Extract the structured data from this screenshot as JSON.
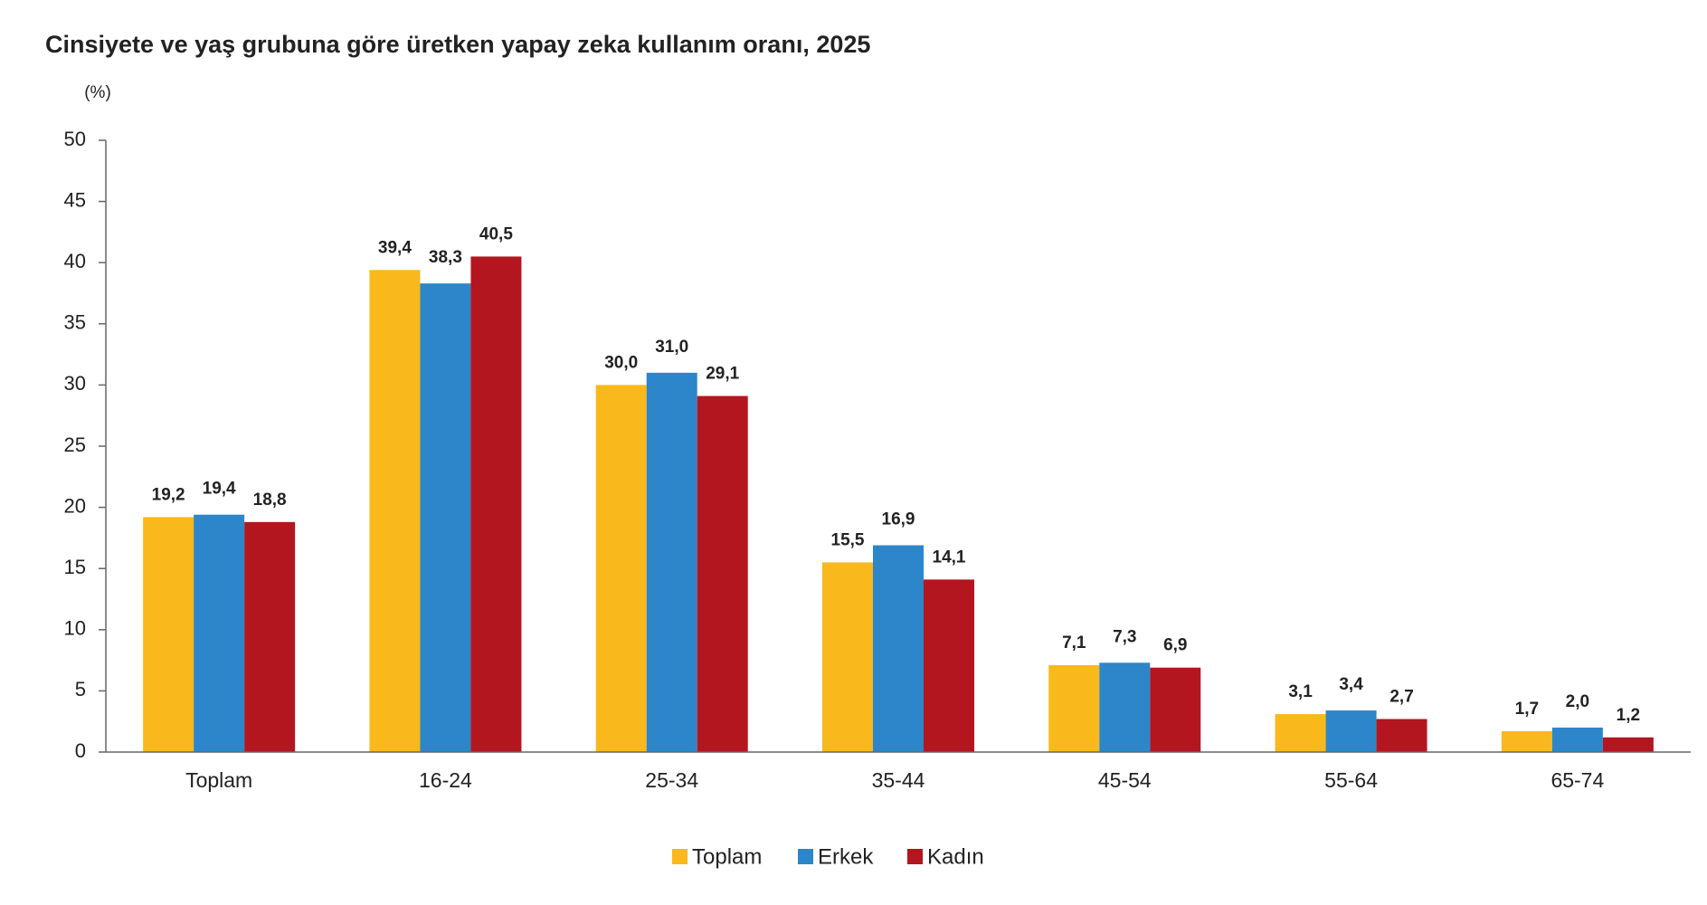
{
  "chart_data": {
    "type": "bar",
    "title": "Cinsiyete ve yaş grubuna göre üretken yapay zeka kullanım oranı, 2025",
    "y_label": "(%)",
    "categories": [
      "Toplam",
      "16-24",
      "25-34",
      "35-44",
      "45-54",
      "55-64",
      "65-74"
    ],
    "series": [
      {
        "name": "Toplam",
        "color": "#f9b81b",
        "values": [
          19.2,
          39.4,
          30.0,
          15.5,
          7.1,
          3.1,
          1.7
        ],
        "value_labels": [
          "19,2",
          "39,4",
          "30,0",
          "15,5",
          "7,1",
          "3,1",
          "1,7"
        ]
      },
      {
        "name": "Erkek",
        "color": "#2c86c9",
        "values": [
          19.4,
          38.3,
          31.0,
          16.9,
          7.3,
          3.4,
          2.0
        ],
        "value_labels": [
          "19,4",
          "38,3",
          "31,0",
          "16,9",
          "7,3",
          "3,4",
          "2,0"
        ]
      },
      {
        "name": "Kadın",
        "color": "#b3161f",
        "values": [
          18.8,
          40.5,
          29.1,
          14.1,
          6.9,
          2.7,
          1.2
        ],
        "value_labels": [
          "18,8",
          "40,5",
          "29,1",
          "14,1",
          "6,9",
          "2,7",
          "1,2"
        ]
      }
    ],
    "ylim": [
      0,
      50
    ],
    "yticks": [
      0,
      5,
      10,
      15,
      20,
      25,
      30,
      35,
      40,
      45,
      50
    ],
    "grid": false,
    "legend": "bottom"
  }
}
